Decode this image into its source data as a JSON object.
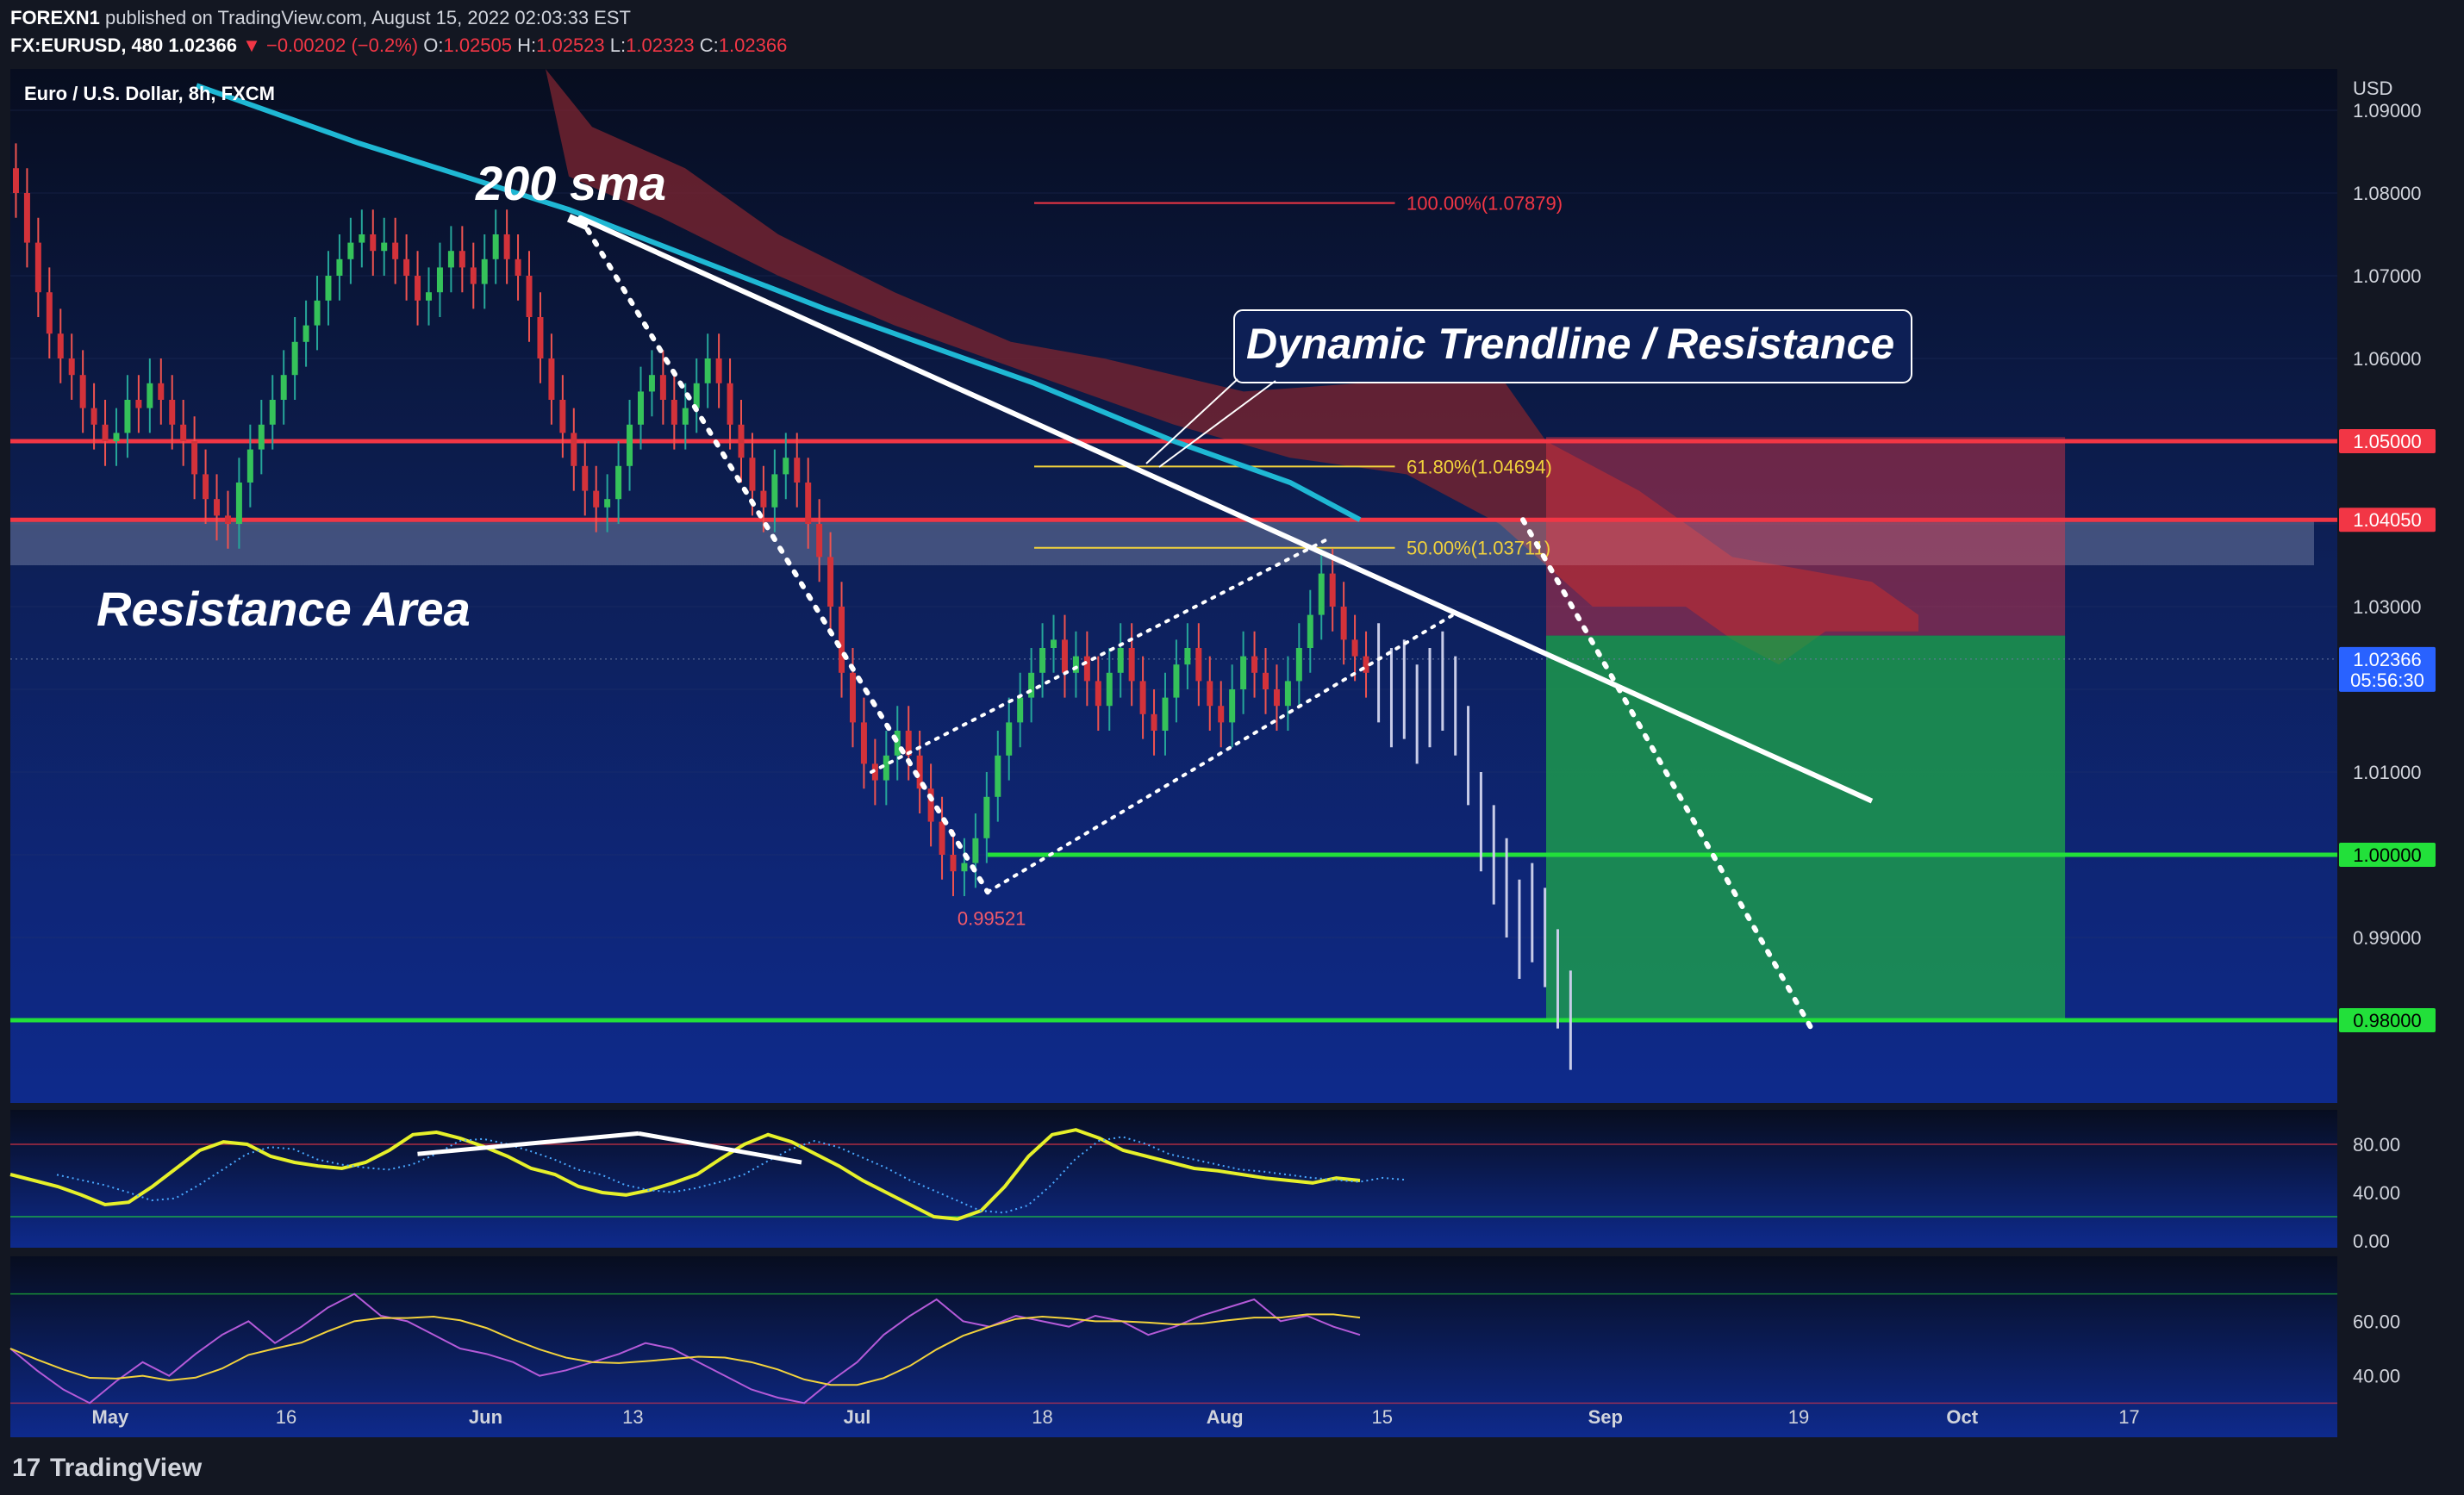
{
  "header": {
    "publisher": "FOREXN1",
    "published_text": "published on TradingView.com, August 15, 2022 02:03:33 EST",
    "symbol": "FX:EURUSD, 480",
    "last": "1.02366",
    "change": "−0.00202 (−0.2%)",
    "o_label": "O:",
    "o": "1.02505",
    "h_label": "H:",
    "h": "1.02523",
    "l_label": "L:",
    "l": "1.02323",
    "c_label": "C:",
    "c": "1.02366"
  },
  "pane_title": "Euro / U.S. Dollar, 8h, FXCM",
  "currency": "USD",
  "branding": "TradingView",
  "annotations": {
    "sma": "200 sma",
    "trendline": "Dynamic Trendline / Resistance",
    "resistance_area": "Resistance Area",
    "low_label": "0.99521",
    "fib_100": "100.00%(1.07879)",
    "fib_618": "61.80%(1.04694)",
    "fib_50": "50.00%(1.03711)"
  },
  "price_tags": {
    "p1050": "1.05000",
    "p1040": "1.04050",
    "current": "1.02366",
    "countdown": "05:56:30",
    "p1000": "1.00000",
    "p980": "0.98000"
  },
  "colors": {
    "background": "#0d1f55",
    "sma": "#1fb8d4",
    "resistance": "#f23645",
    "support": "#22e03a",
    "cloud": "#7a2430",
    "fib": "#f2d23c",
    "osc": "#e6f02a",
    "rsi": "#b45ad8"
  },
  "chart_data": {
    "type": "candlestick",
    "title": "Euro / U.S. Dollar, 8h, FXCM",
    "x_ticks": [
      "May",
      "16",
      "Jun",
      "13",
      "Jul",
      "18",
      "Aug",
      "15",
      "Sep",
      "19",
      "Oct",
      "17"
    ],
    "y_ticks": [
      "1.09000",
      "1.08000",
      "1.07000",
      "1.06000",
      "1.05000",
      "1.04000",
      "1.03000",
      "1.02000",
      "1.01000",
      "1.00000",
      "0.99000",
      "0.98000"
    ],
    "y_range": [
      0.97,
      1.095
    ],
    "levels": {
      "resistance": [
        1.05,
        1.0405
      ],
      "support": [
        1.0,
        0.98
      ],
      "current": 1.02366
    },
    "fibonacci": [
      {
        "level": "100.00%",
        "price": 1.07879
      },
      {
        "level": "61.80%",
        "price": 1.04694
      },
      {
        "level": "50.00%",
        "price": 1.03711
      }
    ],
    "closes": [
      1.08,
      1.074,
      1.068,
      1.063,
      1.06,
      1.058,
      1.054,
      1.052,
      1.05,
      1.051,
      1.055,
      1.054,
      1.057,
      1.055,
      1.052,
      1.05,
      1.046,
      1.043,
      1.041,
      1.04,
      1.045,
      1.049,
      1.052,
      1.055,
      1.058,
      1.062,
      1.064,
      1.067,
      1.07,
      1.072,
      1.074,
      1.075,
      1.073,
      1.074,
      1.072,
      1.07,
      1.067,
      1.068,
      1.071,
      1.073,
      1.071,
      1.069,
      1.072,
      1.075,
      1.072,
      1.07,
      1.065,
      1.06,
      1.055,
      1.051,
      1.047,
      1.044,
      1.042,
      1.043,
      1.047,
      1.052,
      1.056,
      1.058,
      1.055,
      1.052,
      1.054,
      1.057,
      1.06,
      1.057,
      1.052,
      1.048,
      1.044,
      1.042,
      1.046,
      1.048,
      1.045,
      1.04,
      1.036,
      1.03,
      1.022,
      1.016,
      1.011,
      1.009,
      1.012,
      1.015,
      1.012,
      1.008,
      1.004,
      1.0,
      0.998,
      0.999,
      1.002,
      1.007,
      1.012,
      1.016,
      1.019,
      1.022,
      1.025,
      1.026,
      1.022,
      1.024,
      1.021,
      1.018,
      1.022,
      1.025,
      1.021,
      1.017,
      1.015,
      1.019,
      1.023,
      1.025,
      1.021,
      1.018,
      1.016,
      1.02,
      1.024,
      1.022,
      1.02,
      1.018,
      1.021,
      1.025,
      1.029,
      1.034,
      1.03,
      1.026,
      1.024,
      1.022
    ],
    "projection": [
      1.022,
      1.019,
      1.02,
      1.017,
      1.019,
      1.021,
      1.018,
      1.012,
      1.004,
      1.0,
      0.996,
      0.991,
      0.993,
      0.99,
      0.985,
      0.98
    ],
    "sma200": [
      [
        0.08,
        1.093
      ],
      [
        0.15,
        1.086
      ],
      [
        0.24,
        1.078
      ],
      [
        0.35,
        1.066
      ],
      [
        0.44,
        1.057
      ],
      [
        0.5,
        1.05
      ],
      [
        0.55,
        1.045
      ],
      [
        0.58,
        1.0405
      ]
    ],
    "trendline": [
      [
        0.245,
        1.077
      ],
      [
        0.8,
        1.0065
      ]
    ],
    "channel": [
      [
        [
          0.37,
          1.01
        ],
        [
          0.565,
          1.038
        ]
      ],
      [
        [
          0.42,
          0.9955
        ],
        [
          0.62,
          1.029
        ]
      ]
    ],
    "drop_line": [
      [
        0.245,
        1.077
      ],
      [
        0.42,
        0.9955
      ]
    ],
    "projection_line": [
      [
        0.65,
        1.0405
      ],
      [
        0.775,
        0.9785
      ]
    ],
    "stoch_ticks": [
      "80.00",
      "40.00",
      "0.00"
    ],
    "rsi_ticks": [
      "60.00",
      "40.00"
    ],
    "stochastic": [
      55,
      50,
      45,
      38,
      30,
      32,
      45,
      60,
      75,
      82,
      80,
      70,
      65,
      62,
      60,
      65,
      75,
      88,
      90,
      85,
      78,
      70,
      60,
      55,
      45,
      40,
      38,
      42,
      48,
      55,
      68,
      80,
      88,
      82,
      72,
      62,
      50,
      40,
      30,
      20,
      18,
      25,
      45,
      70,
      88,
      92,
      85,
      75,
      70,
      65,
      60,
      58,
      55,
      52,
      50,
      48,
      52,
      50
    ],
    "rsi": [
      50,
      42,
      35,
      30,
      38,
      45,
      40,
      48,
      55,
      60,
      52,
      58,
      65,
      70,
      62,
      60,
      55,
      50,
      48,
      45,
      40,
      42,
      45,
      48,
      52,
      50,
      45,
      40,
      35,
      32,
      30,
      38,
      45,
      55,
      62,
      68,
      60,
      58,
      62,
      60,
      58,
      62,
      60,
      55,
      58,
      62,
      65,
      68,
      60,
      62,
      58,
      55
    ]
  }
}
